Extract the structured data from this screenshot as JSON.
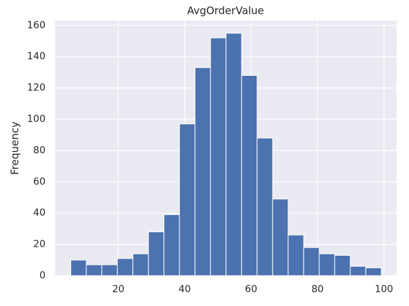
{
  "chart_data": {
    "type": "histogram",
    "title": "AvgOrderValue",
    "ylabel": "Frequency",
    "bins": [
      5.7,
      10.38,
      15.05,
      19.73,
      24.4,
      29.08,
      33.75,
      38.43,
      43.1,
      47.78,
      52.45,
      57.13,
      61.8,
      66.48,
      71.15,
      75.83,
      80.5,
      85.18,
      89.85,
      94.53,
      99.2
    ],
    "values": [
      10,
      7,
      7,
      11,
      14,
      28,
      39,
      97,
      133,
      152,
      155,
      128,
      88,
      49,
      26,
      18,
      14,
      13,
      6,
      5
    ],
    "color": "#4c72b0",
    "xlim": [
      1.0,
      103.8
    ],
    "xticks": [
      20,
      40,
      60,
      80,
      100
    ],
    "ylim": [
      0,
      163
    ],
    "yticks": [
      0,
      20,
      40,
      60,
      80,
      100,
      120,
      140,
      160
    ],
    "grid": true
  }
}
